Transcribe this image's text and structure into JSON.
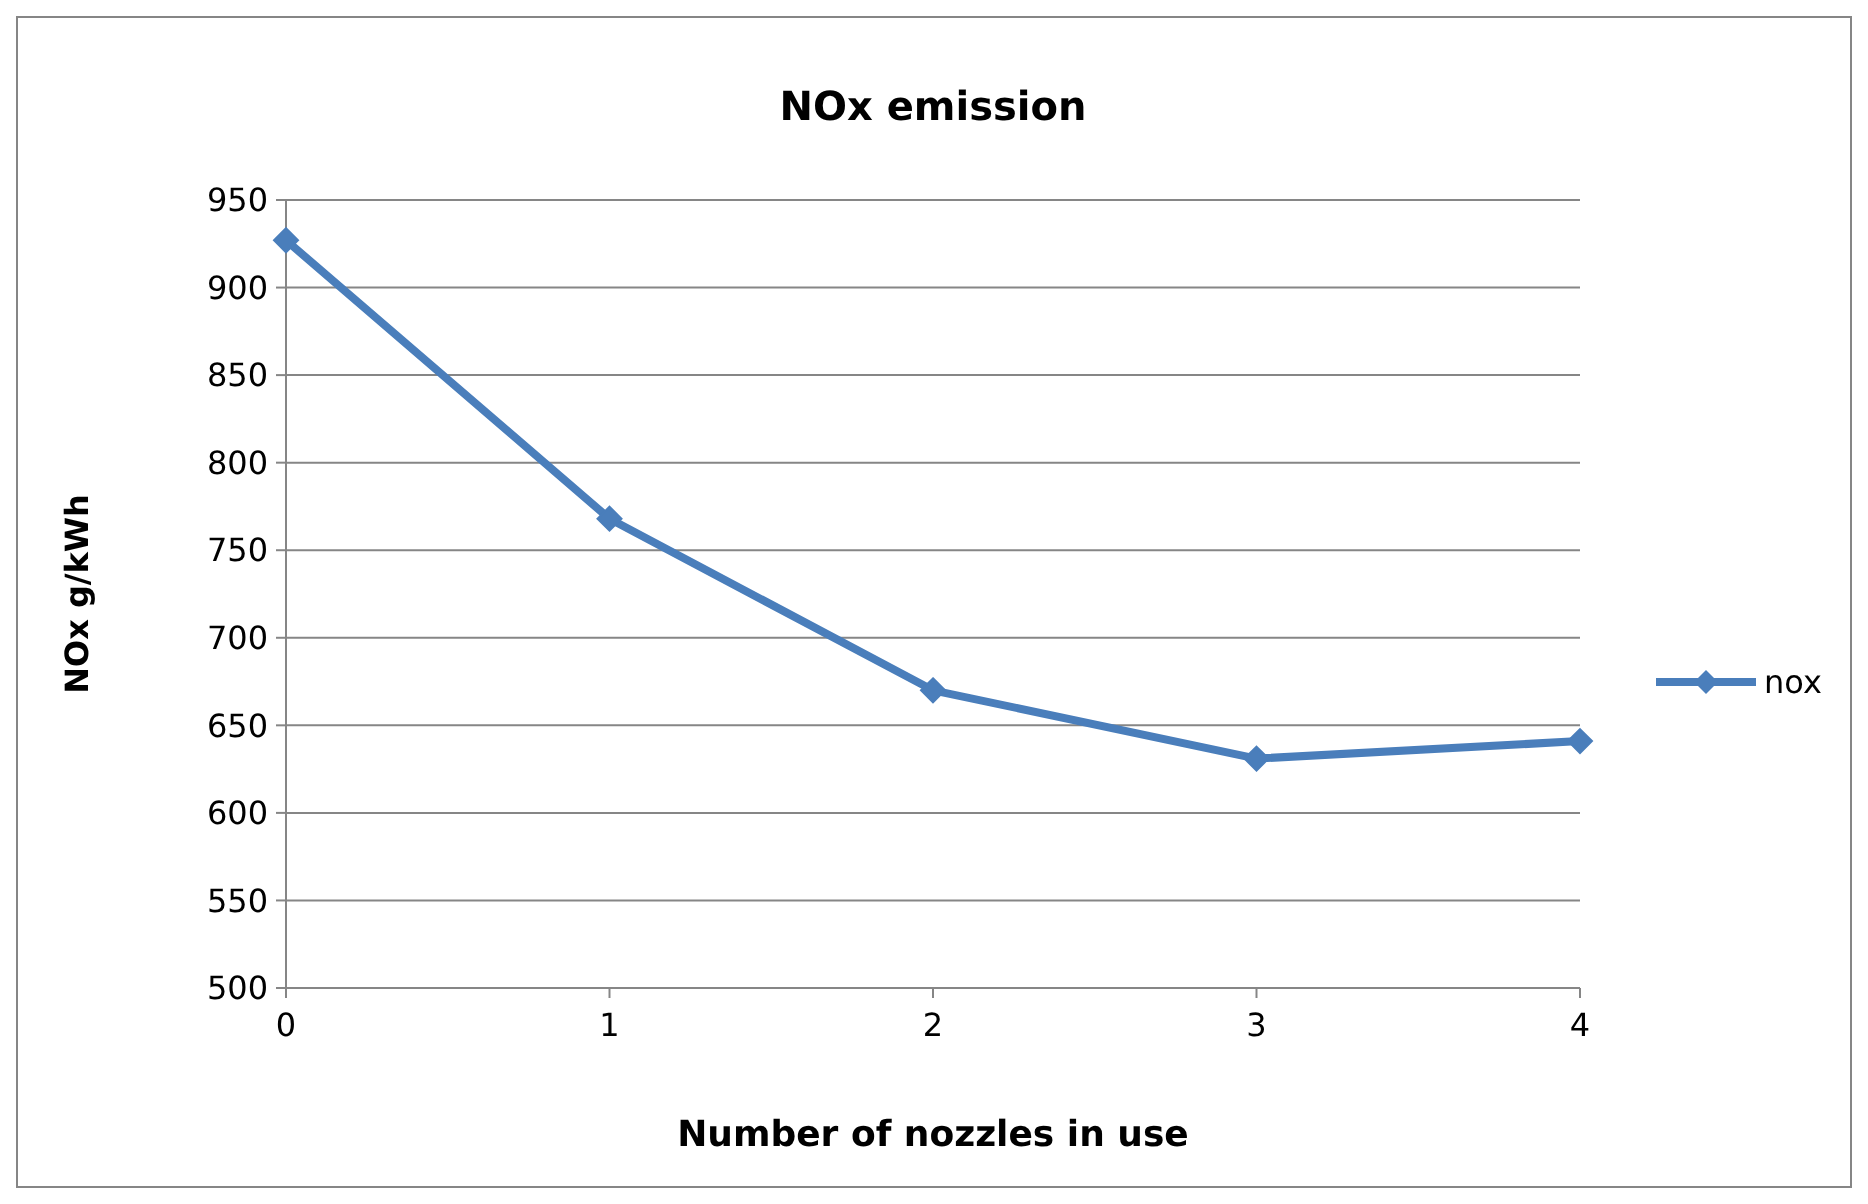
{
  "chart_data": {
    "type": "line",
    "title": "NOx emission",
    "xlabel": "Number of nozzles in use",
    "ylabel": "NOx g/kWh",
    "x": [
      0,
      1,
      2,
      3,
      4
    ],
    "series": [
      {
        "name": "nox",
        "color": "#4a7ebb",
        "values": [
          927,
          768,
          670,
          631,
          641
        ]
      }
    ],
    "xlim": [
      0,
      4
    ],
    "xticks": [
      0,
      1,
      2,
      3,
      4
    ],
    "ylim": [
      500,
      950
    ],
    "yticks": [
      500,
      550,
      600,
      650,
      700,
      750,
      800,
      850,
      900,
      950
    ],
    "grid": "y",
    "legend": "right",
    "marker": "diamond",
    "line_style": "solid"
  }
}
